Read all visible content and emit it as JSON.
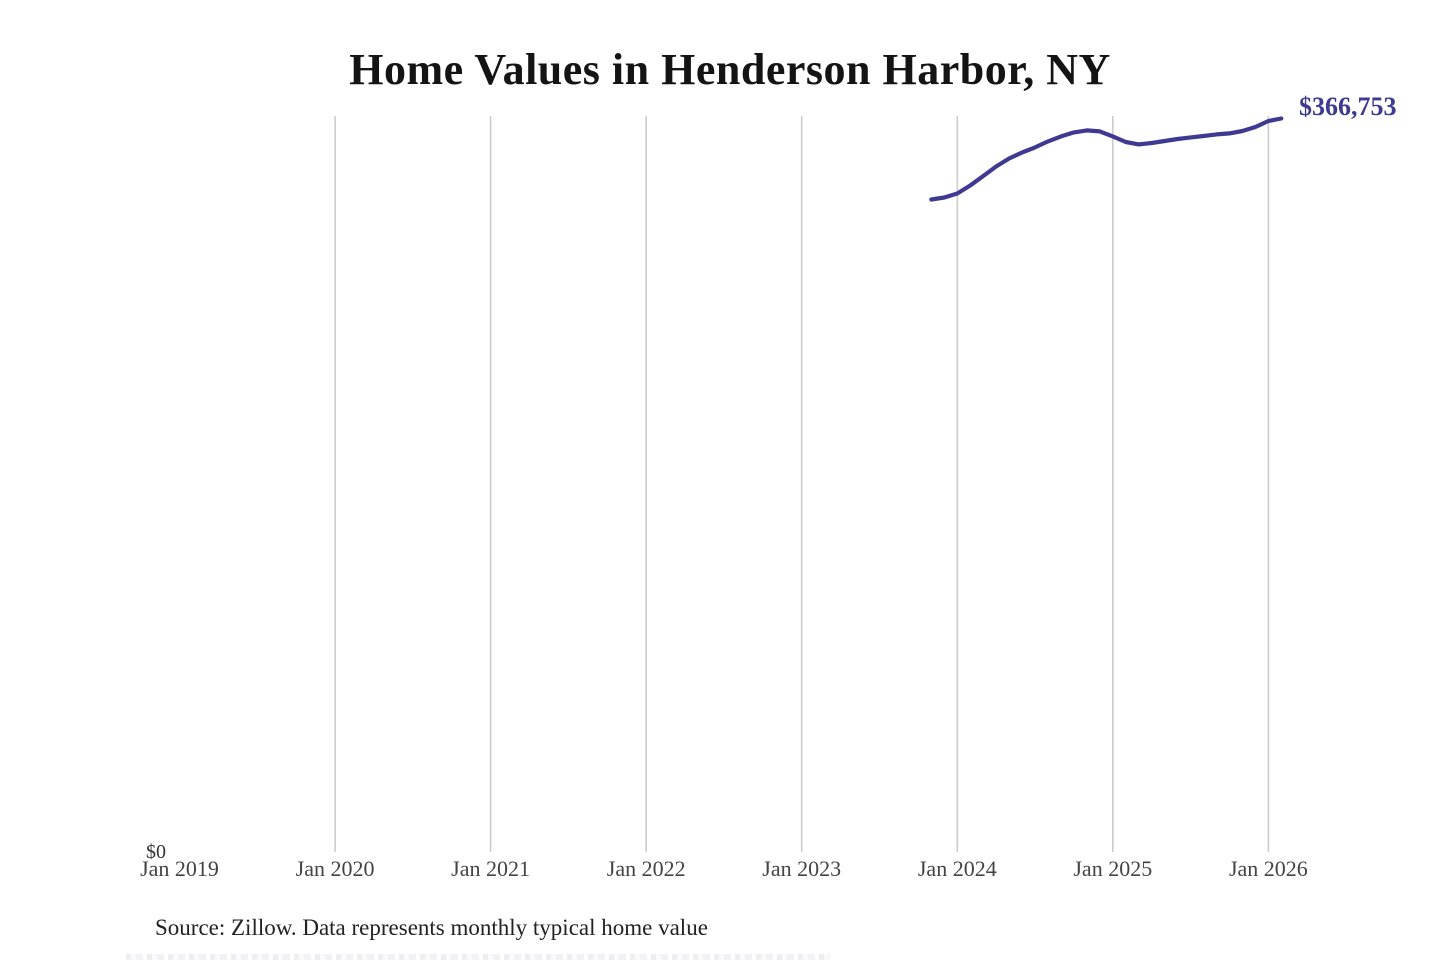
{
  "title": "Home Values in Henderson Harbor, NY",
  "source_note": "Source: Zillow. Data represents monthly typical home value",
  "chart_data": {
    "type": "line",
    "title": "Home Values in Henderson Harbor, NY",
    "end_label": "$366,753",
    "end_value": 366753,
    "line_color": "#3e3a92",
    "gridline_color": "#cccccc",
    "end_label_color": "#3e3a92",
    "legend": "none",
    "y_axis": {
      "zero_label": "$0",
      "ylim": [
        0,
        366753
      ],
      "gridlines": "vertical-only"
    },
    "x_axis": {
      "ticks": [
        {
          "label": "Jan 2019",
          "at": "2019-01"
        },
        {
          "label": "Jan 2020",
          "at": "2020-01"
        },
        {
          "label": "Jan 2021",
          "at": "2021-01"
        },
        {
          "label": "Jan 2022",
          "at": "2022-01"
        },
        {
          "label": "Jan 2023",
          "at": "2023-01"
        },
        {
          "label": "Jan 2024",
          "at": "2024-01"
        },
        {
          "label": "Jan 2025",
          "at": "2025-01"
        },
        {
          "label": "Jan 2026",
          "at": "2026-01"
        }
      ],
      "gridlines_at": [
        "2020-01",
        "2021-01",
        "2022-01",
        "2023-01",
        "2024-01",
        "2025-01",
        "2026-01"
      ]
    },
    "points": [
      {
        "month": "2023-11",
        "value": 326300
      },
      {
        "month": "2023-12",
        "value": 327300
      },
      {
        "month": "2024-01",
        "value": 329300
      },
      {
        "month": "2024-02",
        "value": 333300
      },
      {
        "month": "2024-03",
        "value": 338000
      },
      {
        "month": "2024-04",
        "value": 342800
      },
      {
        "month": "2024-05",
        "value": 346800
      },
      {
        "month": "2024-06",
        "value": 349800
      },
      {
        "month": "2024-07",
        "value": 352300
      },
      {
        "month": "2024-08",
        "value": 355300
      },
      {
        "month": "2024-09",
        "value": 357800
      },
      {
        "month": "2024-10",
        "value": 359800
      },
      {
        "month": "2024-11",
        "value": 360800
      },
      {
        "month": "2024-12",
        "value": 360300
      },
      {
        "month": "2025-01",
        "value": 357800
      },
      {
        "month": "2025-02",
        "value": 355000
      },
      {
        "month": "2025-03",
        "value": 353800
      },
      {
        "month": "2025-04",
        "value": 354500
      },
      {
        "month": "2025-05",
        "value": 355500
      },
      {
        "month": "2025-06",
        "value": 356500
      },
      {
        "month": "2025-07",
        "value": 357300
      },
      {
        "month": "2025-08",
        "value": 358000
      },
      {
        "month": "2025-09",
        "value": 358800
      },
      {
        "month": "2025-10",
        "value": 359300
      },
      {
        "month": "2025-11",
        "value": 360500
      },
      {
        "month": "2025-12",
        "value": 362500
      },
      {
        "month": "2026-01",
        "value": 365500
      },
      {
        "month": "2026-02",
        "value": 366753
      }
    ]
  }
}
